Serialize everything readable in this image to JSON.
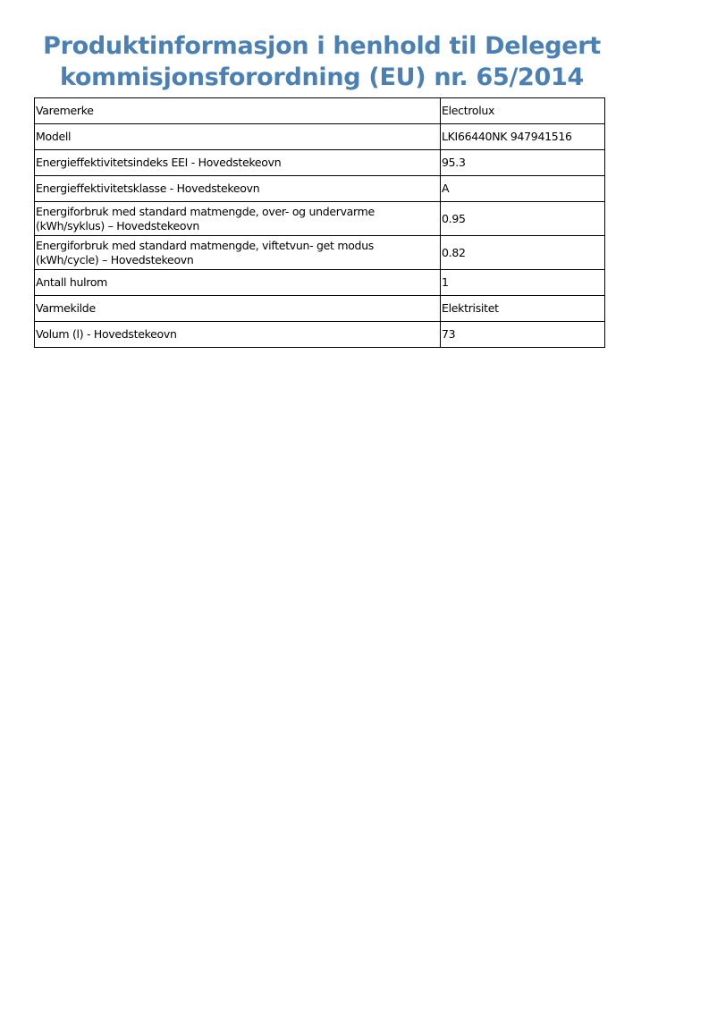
{
  "title": {
    "line1": "Produktinformasjon i henhold til Delegert",
    "line2": "kommisjonsforordning (EU) nr. 65/2014"
  },
  "title_color": "#4a80b4",
  "rows": [
    {
      "label": "Varemerke",
      "value": "Electrolux"
    },
    {
      "label": "Modell",
      "value": "LKI66440NK 947941516"
    },
    {
      "label": "Energieffektivitetsindeks EEI - Hovedstekeovn",
      "value": "95.3"
    },
    {
      "label": "Energieffektivitetsklasse - Hovedstekeovn",
      "value": "A"
    },
    {
      "label": "Energiforbruk med standard matmengde, over- og undervarme (kWh/syklus) – Hovedstekeovn",
      "value": "0.95"
    },
    {
      "label": "Energiforbruk med standard matmengde, viftetvun- get modus (kWh/cycle) – Hovedstekeovn",
      "value": "0.82"
    },
    {
      "label": "Antall hulrom",
      "value": "1"
    },
    {
      "label": "Varmekilde",
      "value": "Elektrisitet"
    },
    {
      "label": "Volum (l) - Hovedstekeovn",
      "value": "73"
    }
  ]
}
